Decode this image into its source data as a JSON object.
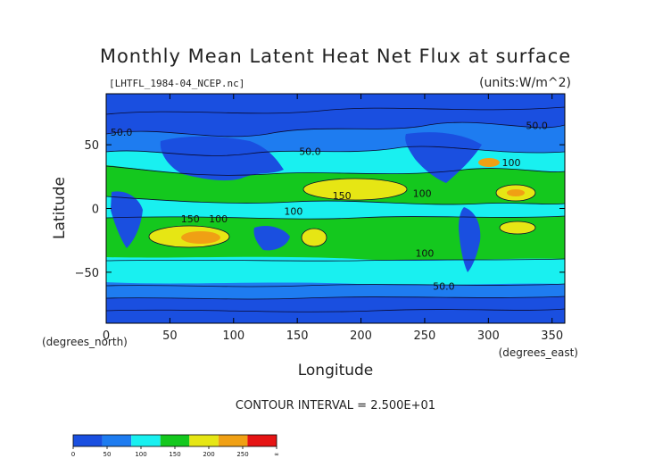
{
  "chart_data": {
    "type": "heatmap",
    "title": "Monthly Mean Latent Heat Net Flux at surface",
    "source_label": "[LHTFL_1984-04_NCEP.nc]",
    "units_label": "(units:W/m^2)",
    "xlabel": "Longitude",
    "ylabel": "Latitude",
    "x_unit_label": "(degrees_east)",
    "y_unit_label": "(degrees_north)",
    "xlim": [
      0,
      360
    ],
    "ylim": [
      -90,
      90
    ],
    "x_ticks": [
      0,
      50,
      100,
      150,
      200,
      250,
      300,
      350
    ],
    "y_ticks": [
      -50,
      0,
      50
    ],
    "contour_interval_text": "CONTOUR INTERVAL = 2.500E+01",
    "contour_labels": [
      {
        "text": "50.0",
        "x": 12,
        "y": 60
      },
      {
        "text": "50.0",
        "x": 160,
        "y": 45
      },
      {
        "text": "150",
        "x": 185,
        "y": 10
      },
      {
        "text": "100",
        "x": 248,
        "y": 12
      },
      {
        "text": "100",
        "x": 318,
        "y": 36
      },
      {
        "text": "50.0",
        "x": 338,
        "y": 65
      },
      {
        "text": "150",
        "x": 66,
        "y": -8
      },
      {
        "text": "100",
        "x": 88,
        "y": -8
      },
      {
        "text": "100",
        "x": 147,
        "y": -2
      },
      {
        "text": "100",
        "x": 250,
        "y": -35
      },
      {
        "text": "50.0",
        "x": 265,
        "y": -61
      }
    ],
    "colorbar": {
      "levels": [
        "0",
        "50",
        "100",
        "150",
        "200",
        "250",
        "∞"
      ],
      "colors": [
        "#1a4fe0",
        "#1e7cf0",
        "#19f0f0",
        "#14c81e",
        "#e6e614",
        "#f0a014",
        "#e61414"
      ]
    }
  }
}
